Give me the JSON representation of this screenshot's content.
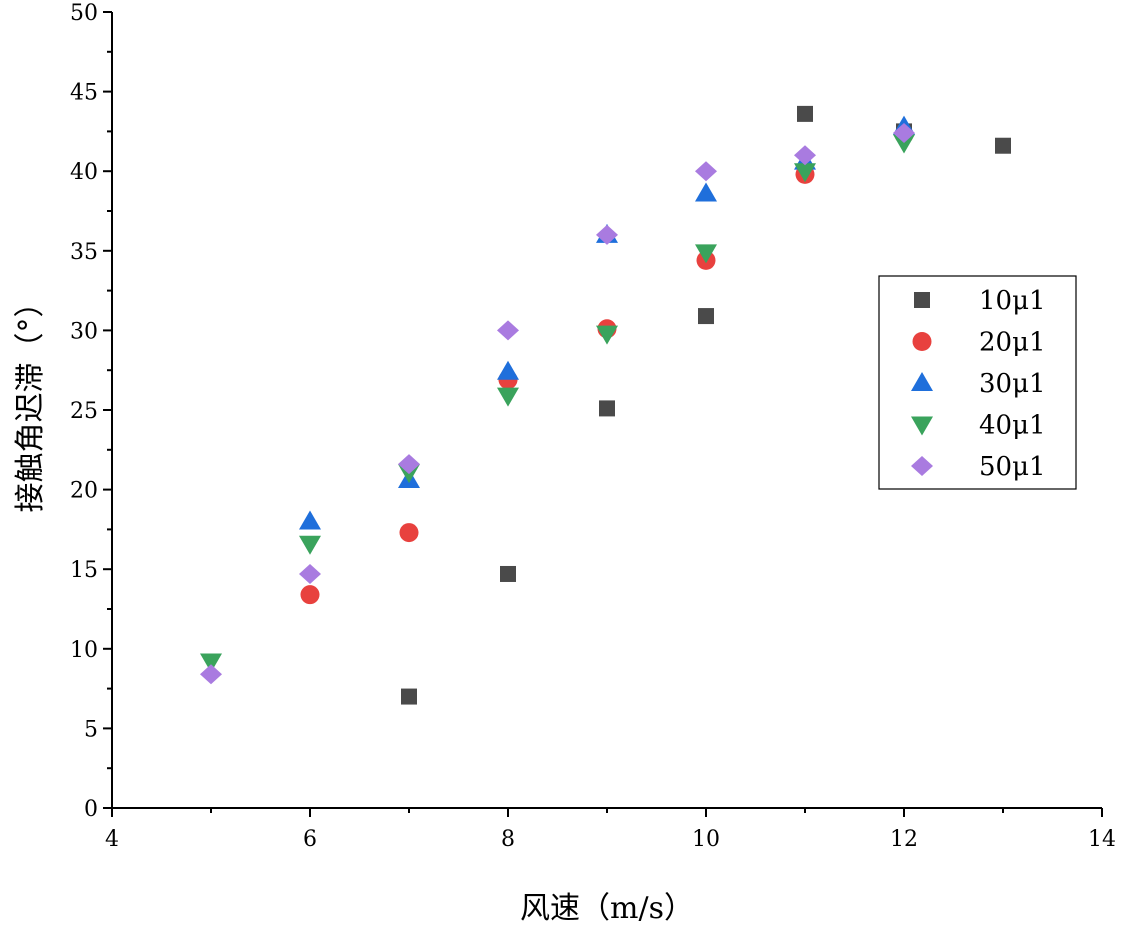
{
  "chart_data": {
    "type": "scatter",
    "title": "",
    "xlabel": "风速（m/s）",
    "ylabel": "接触角迟滞（°）",
    "xlim": [
      4,
      14
    ],
    "ylim": [
      0,
      50
    ],
    "xticks": [
      4,
      6,
      8,
      10,
      12,
      14
    ],
    "yticks": [
      0,
      5,
      10,
      15,
      20,
      25,
      30,
      35,
      40,
      45,
      50
    ],
    "legend_position": "right-middle",
    "grid": false,
    "series": [
      {
        "name": "10 μ l",
        "label": "10μ1",
        "marker": "square",
        "color": "#4a4a4a",
        "x": [
          7,
          8,
          9,
          10,
          11,
          12,
          13
        ],
        "y": [
          7.0,
          14.7,
          25.1,
          30.9,
          43.6,
          42.5,
          41.6
        ]
      },
      {
        "name": "20 μ l",
        "label": "20μ1",
        "marker": "circle",
        "color": "#e8413e",
        "x": [
          6,
          7,
          8,
          9,
          10,
          11,
          12
        ],
        "y": [
          13.4,
          17.3,
          26.9,
          30.1,
          34.4,
          39.8,
          42.3
        ]
      },
      {
        "name": "30 μ l",
        "label": "30μ1",
        "marker": "triangle-up",
        "color": "#1f6fdb",
        "x": [
          6,
          7,
          8,
          9,
          10,
          11,
          12
        ],
        "y": [
          18.0,
          20.6,
          27.4,
          36.0,
          38.6,
          40.6,
          42.8
        ]
      },
      {
        "name": "40 μ l",
        "label": "40μ1",
        "marker": "triangle-down",
        "color": "#3aa35c",
        "x": [
          5,
          6,
          7,
          8,
          9,
          10,
          11,
          12
        ],
        "y": [
          9.2,
          16.6,
          21.1,
          25.9,
          29.8,
          34.9,
          40.0,
          41.8
        ]
      },
      {
        "name": "50 μ l",
        "label": "50μ1",
        "marker": "diamond",
        "color": "#a97be0",
        "x": [
          5,
          6,
          7,
          8,
          9,
          10,
          11,
          12
        ],
        "y": [
          8.4,
          14.7,
          21.6,
          30.0,
          36.0,
          40.0,
          41.0,
          42.4
        ]
      }
    ]
  }
}
